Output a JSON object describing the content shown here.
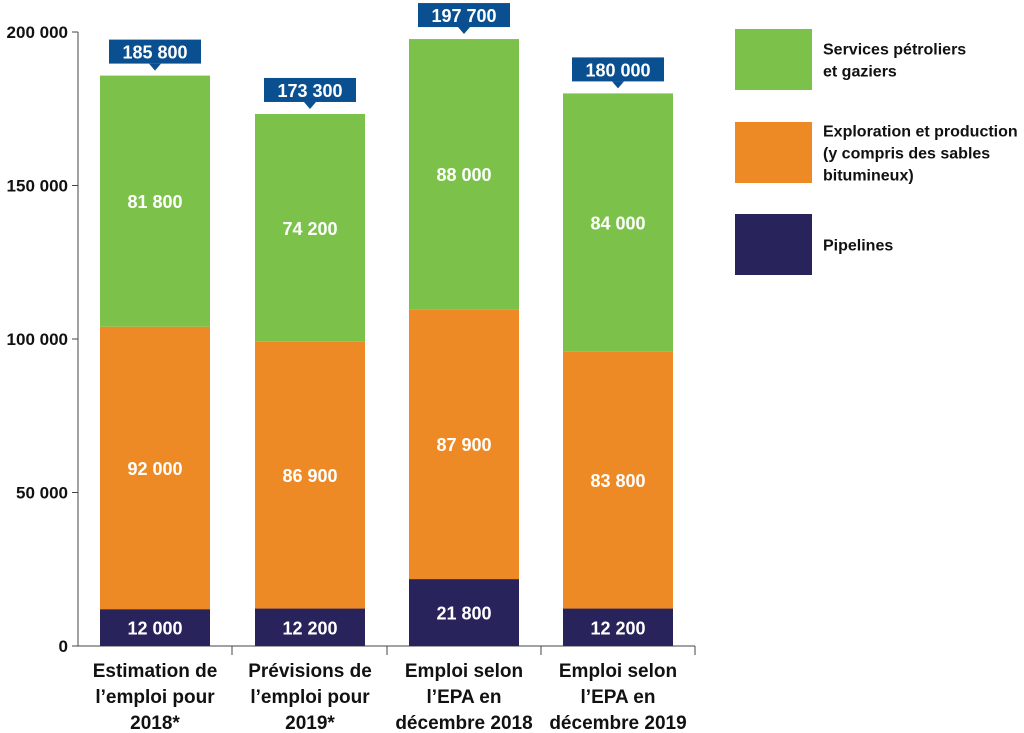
{
  "chart_data": {
    "type": "bar",
    "stacked": true,
    "categories": [
      [
        "Estimation de",
        "l’emploi pour",
        "2018*"
      ],
      [
        "Prévisions de",
        "l’emploi pour",
        "2019*"
      ],
      [
        "Emploi selon",
        "l’EPA en",
        "décembre 2018"
      ],
      [
        "Emploi selon",
        "l’EPA en",
        "décembre 2019"
      ]
    ],
    "series": [
      {
        "name": "Pipelines",
        "color": "#29235c",
        "values": [
          12000,
          12200,
          21800,
          12200
        ],
        "labels": [
          "12 000",
          "12 200",
          "21 800",
          "12 200"
        ]
      },
      {
        "name": "Exploration et production (y compris des sables bitumineux)",
        "color": "#ee8a25",
        "values": [
          92000,
          86900,
          87900,
          83800
        ],
        "labels": [
          "92 000",
          "86 900",
          "87 900",
          "83 800"
        ]
      },
      {
        "name": "Services pétroliers et gaziers",
        "color": "#7cc24a",
        "values": [
          81800,
          74200,
          88000,
          84000
        ],
        "labels": [
          "81 800",
          "74 200",
          "88 000",
          "84 000"
        ]
      }
    ],
    "totals": [
      "185 800",
      "173 300",
      "197 700",
      "180 000"
    ],
    "total_values": [
      185800,
      173300,
      197700,
      180000
    ],
    "total_badge_color": "#0a4f8f",
    "ylim": [
      0,
      200000
    ],
    "yticks": [
      {
        "value": 0,
        "label": "0"
      },
      {
        "value": 50000,
        "label": "50 000"
      },
      {
        "value": 100000,
        "label": "100 000"
      },
      {
        "value": 150000,
        "label": "150 000"
      },
      {
        "value": 200000,
        "label": "200 000"
      }
    ],
    "legend": {
      "position": "right",
      "entries": [
        {
          "color": "#7cc24a",
          "lines": [
            "Services pétroliers",
            "et gaziers"
          ]
        },
        {
          "color": "#ee8a25",
          "lines": [
            "Exploration et production",
            "(y compris des sables",
            "bitumineux)"
          ]
        },
        {
          "color": "#29235c",
          "lines": [
            "Pipelines"
          ]
        }
      ]
    },
    "grid": false,
    "title": "",
    "xlabel": "",
    "ylabel": ""
  }
}
